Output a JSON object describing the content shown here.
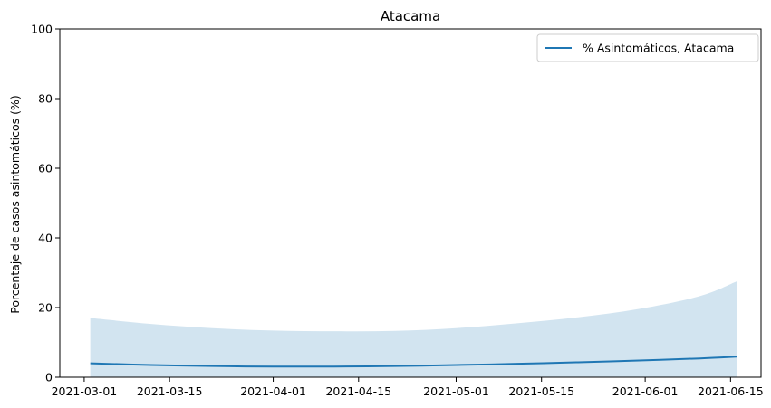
{
  "chart_data": {
    "type": "line",
    "title": "Atacama",
    "xlabel": "",
    "ylabel": "Porcentaje de casos asintomáticos (%)",
    "ylim": [
      0,
      100
    ],
    "xlim": [
      "2021-02-25",
      "2021-06-20"
    ],
    "x_ticks": [
      "2021-03-01",
      "2021-03-15",
      "2021-04-01",
      "2021-04-15",
      "2021-05-01",
      "2021-05-15",
      "2021-06-01",
      "2021-06-15"
    ],
    "y_ticks": [
      0,
      20,
      40,
      60,
      80,
      100
    ],
    "grid": false,
    "legend_position": "top-right",
    "colors": {
      "line": "#1f77b4",
      "band": "#1f77b4"
    },
    "series": [
      {
        "name": "% Asintomáticos, Atacama",
        "x": [
          "2021-03-02",
          "2021-03-12",
          "2021-03-22",
          "2021-04-01",
          "2021-04-11",
          "2021-04-21",
          "2021-05-01",
          "2021-05-11",
          "2021-05-21",
          "2021-05-31",
          "2021-06-10",
          "2021-06-16"
        ],
        "y": [
          4.0,
          3.5,
          3.2,
          3.05,
          3.05,
          3.2,
          3.5,
          3.85,
          4.3,
          4.8,
          5.4,
          5.9
        ],
        "band_upper": [
          17.0,
          15.3,
          14.1,
          13.4,
          13.2,
          13.3,
          14.1,
          15.5,
          17.2,
          19.6,
          23.3,
          27.5
        ],
        "band_lower": [
          0,
          0,
          0,
          0,
          0,
          0,
          0,
          0,
          0,
          0,
          0,
          0
        ]
      }
    ]
  }
}
